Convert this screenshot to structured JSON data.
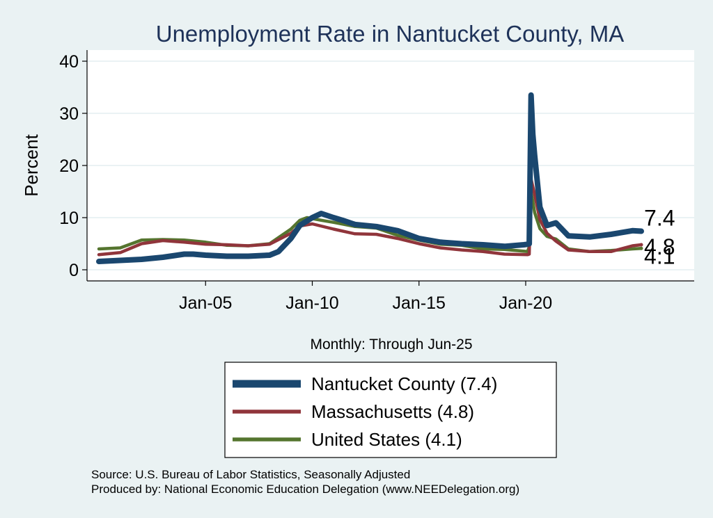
{
  "chart_data": {
    "type": "line",
    "title": "Unemployment Rate in Nantucket  County, MA",
    "xlabel": "Monthly: Through Jun-25",
    "ylabel": "Percent",
    "x_range": [
      "2000-01",
      "2025-06"
    ],
    "ylim": [
      0,
      42
    ],
    "yticks": [
      0,
      10,
      20,
      30,
      40
    ],
    "xticks": [
      "Jan-05",
      "Jan-10",
      "Jan-15",
      "Jan-20"
    ],
    "grid": true,
    "legend_position": "bottom",
    "series": [
      {
        "name": "Nantucket  County (7.4)",
        "color": "#1a476f",
        "end_label": "7.4",
        "points": [
          [
            "2000-01",
            1.6
          ],
          [
            "2001-01",
            1.8
          ],
          [
            "2002-01",
            2.0
          ],
          [
            "2003-01",
            2.4
          ],
          [
            "2004-01",
            3.0
          ],
          [
            "2004-06",
            3.0
          ],
          [
            "2005-01",
            2.8
          ],
          [
            "2006-01",
            2.6
          ],
          [
            "2007-01",
            2.6
          ],
          [
            "2008-01",
            2.8
          ],
          [
            "2008-06",
            3.5
          ],
          [
            "2009-01",
            6.0
          ],
          [
            "2009-06",
            8.5
          ],
          [
            "2010-01",
            10.0
          ],
          [
            "2010-06",
            10.8
          ],
          [
            "2011-01",
            10.0
          ],
          [
            "2011-06",
            9.5
          ],
          [
            "2012-01",
            8.7
          ],
          [
            "2013-01",
            8.3
          ],
          [
            "2014-01",
            7.5
          ],
          [
            "2015-01",
            6.0
          ],
          [
            "2016-01",
            5.3
          ],
          [
            "2017-01",
            5.0
          ],
          [
            "2018-01",
            4.8
          ],
          [
            "2019-01",
            4.5
          ],
          [
            "2019-12",
            4.8
          ],
          [
            "2020-02",
            4.9
          ],
          [
            "2020-03",
            5.0
          ],
          [
            "2020-04",
            33.5
          ],
          [
            "2020-05",
            26.0
          ],
          [
            "2020-06",
            22.0
          ],
          [
            "2020-09",
            12.0
          ],
          [
            "2021-01",
            8.5
          ],
          [
            "2021-06",
            9.0
          ],
          [
            "2022-01",
            6.5
          ],
          [
            "2023-01",
            6.3
          ],
          [
            "2024-01",
            6.8
          ],
          [
            "2025-01",
            7.5
          ],
          [
            "2025-06",
            7.4
          ]
        ]
      },
      {
        "name": "Massachusetts (4.8)",
        "color": "#90353b",
        "end_label": "4.8",
        "points": [
          [
            "2000-01",
            2.9
          ],
          [
            "2001-01",
            3.3
          ],
          [
            "2002-01",
            5.0
          ],
          [
            "2003-01",
            5.6
          ],
          [
            "2004-01",
            5.3
          ],
          [
            "2005-01",
            4.9
          ],
          [
            "2006-01",
            4.8
          ],
          [
            "2007-01",
            4.6
          ],
          [
            "2008-01",
            4.9
          ],
          [
            "2009-01",
            7.0
          ],
          [
            "2009-06",
            8.4
          ],
          [
            "2010-01",
            8.8
          ],
          [
            "2011-01",
            7.8
          ],
          [
            "2012-01",
            6.9
          ],
          [
            "2013-01",
            6.8
          ],
          [
            "2014-01",
            6.0
          ],
          [
            "2015-01",
            5.0
          ],
          [
            "2016-01",
            4.2
          ],
          [
            "2017-01",
            3.8
          ],
          [
            "2018-01",
            3.5
          ],
          [
            "2019-01",
            3.0
          ],
          [
            "2020-02",
            2.9
          ],
          [
            "2020-03",
            3.0
          ],
          [
            "2020-04",
            17.4
          ],
          [
            "2020-06",
            14.5
          ],
          [
            "2020-09",
            9.6
          ],
          [
            "2021-01",
            7.0
          ],
          [
            "2021-06",
            5.5
          ],
          [
            "2022-01",
            3.8
          ],
          [
            "2023-01",
            3.5
          ],
          [
            "2024-01",
            3.5
          ],
          [
            "2025-01",
            4.6
          ],
          [
            "2025-06",
            4.8
          ]
        ]
      },
      {
        "name": "United States (4.1)",
        "color": "#55752f",
        "end_label": "4.1",
        "points": [
          [
            "2000-01",
            4.0
          ],
          [
            "2001-01",
            4.2
          ],
          [
            "2002-01",
            5.7
          ],
          [
            "2003-01",
            5.8
          ],
          [
            "2004-01",
            5.7
          ],
          [
            "2005-01",
            5.3
          ],
          [
            "2006-01",
            4.7
          ],
          [
            "2007-01",
            4.6
          ],
          [
            "2008-01",
            5.0
          ],
          [
            "2009-01",
            7.8
          ],
          [
            "2009-06",
            9.5
          ],
          [
            "2009-10",
            10.0
          ],
          [
            "2010-06",
            9.5
          ],
          [
            "2011-01",
            9.1
          ],
          [
            "2012-01",
            8.3
          ],
          [
            "2013-01",
            8.0
          ],
          [
            "2014-01",
            6.6
          ],
          [
            "2015-01",
            5.7
          ],
          [
            "2016-01",
            4.9
          ],
          [
            "2017-01",
            4.7
          ],
          [
            "2018-01",
            4.0
          ],
          [
            "2019-01",
            3.9
          ],
          [
            "2020-02",
            3.5
          ],
          [
            "2020-03",
            4.4
          ],
          [
            "2020-04",
            14.8
          ],
          [
            "2020-05",
            13.2
          ],
          [
            "2020-06",
            11.0
          ],
          [
            "2020-09",
            7.9
          ],
          [
            "2021-01",
            6.4
          ],
          [
            "2021-06",
            5.9
          ],
          [
            "2022-01",
            4.0
          ],
          [
            "2023-01",
            3.5
          ],
          [
            "2024-01",
            3.7
          ],
          [
            "2025-01",
            4.0
          ],
          [
            "2025-06",
            4.1
          ]
        ]
      }
    ],
    "source_lines": [
      "Source: U.S. Bureau of Labor Statistics, Seasonally Adjusted",
      "Produced by: National Economic Education Delegation (www.NEEDelegation.org)"
    ]
  }
}
